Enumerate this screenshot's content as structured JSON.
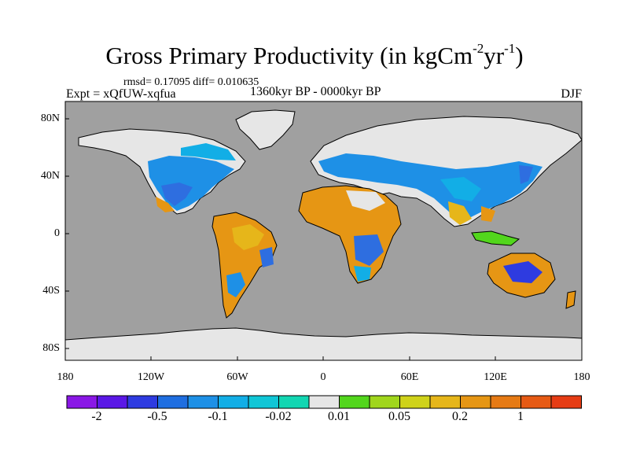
{
  "title": {
    "main": "Gross Primary Productivity (in kgCm",
    "exp1": "-2",
    "mid": "yr",
    "exp2": "-1",
    "end": ")"
  },
  "stats": "rmsd= 0.17095 diff= 0.010635",
  "left_label": "Expt = xQfUW-xqfua",
  "center_label": "1360kyr BP - 0000kyr BP",
  "right_label": "DJF",
  "lat_ticks": [
    "80N",
    "40N",
    "0",
    "40S",
    "80S"
  ],
  "lon_ticks": [
    "180",
    "120W",
    "60W",
    "0",
    "60E",
    "120E",
    "180"
  ],
  "colorbar": {
    "colors": [
      "#8a17e6",
      "#5a17e6",
      "#2e3be0",
      "#1f6ee0",
      "#1e90e6",
      "#12aee6",
      "#10c6d6",
      "#12d6b2",
      "#e6e6e6",
      "#52d61c",
      "#a0d61c",
      "#cfd21a",
      "#e6b61a",
      "#e69614",
      "#e67a14",
      "#e65a14",
      "#e63c14"
    ],
    "labels": [
      "-2",
      "-0.5",
      "-0.1",
      "-0.02",
      "0.01",
      "0.05",
      "0.2",
      "1"
    ]
  },
  "colors": {
    "ocean": "#a0a0a0",
    "ice": "#e6e6e6",
    "frame": "#000000"
  }
}
